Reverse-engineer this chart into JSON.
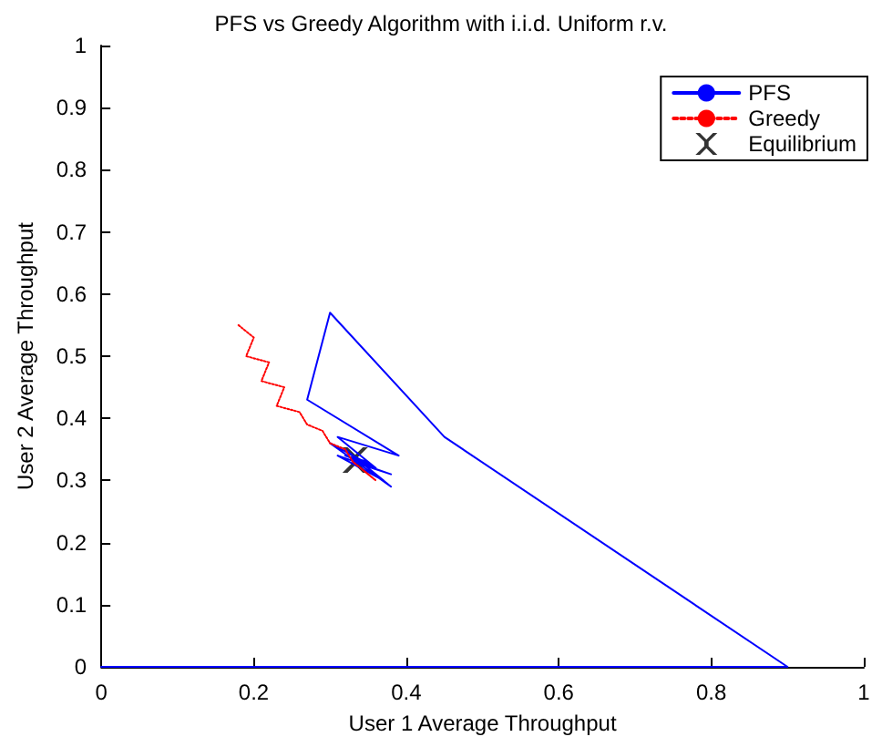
{
  "chart_data": {
    "type": "line",
    "title": "PFS vs Greedy Algorithm with i.i.d. Uniform r.v.",
    "xlabel": "User 1 Average Throughput",
    "ylabel": "User 2 Average Throughput",
    "series": [
      {
        "name": "PFS",
        "color": "#0000ff",
        "line_style": "solid",
        "marker": "none",
        "x": [
          0,
          0.9,
          0.45,
          0.3,
          0.27,
          0.39,
          0.31,
          0.36,
          0.3,
          0.38,
          0.32,
          0.37,
          0.31,
          0.38,
          0.33,
          0.36,
          0.32,
          0.35
        ],
        "values": [
          0,
          0,
          0.37,
          0.57,
          0.43,
          0.34,
          0.37,
          0.32,
          0.36,
          0.29,
          0.35,
          0.3,
          0.34,
          0.31,
          0.33,
          0.32,
          0.34,
          0.33
        ]
      },
      {
        "name": "Greedy",
        "color": "#ff0000",
        "line_style": "dotted",
        "marker": "none",
        "x": [
          0.18,
          0.2,
          0.19,
          0.22,
          0.21,
          0.24,
          0.23,
          0.26,
          0.27,
          0.29,
          0.3,
          0.32,
          0.33,
          0.35,
          0.36,
          0.34
        ],
        "values": [
          0.55,
          0.53,
          0.5,
          0.49,
          0.46,
          0.45,
          0.42,
          0.41,
          0.39,
          0.38,
          0.36,
          0.35,
          0.33,
          0.31,
          0.3,
          0.32
        ]
      },
      {
        "name": "Equilibrium",
        "type": "scatter",
        "color": "#000000",
        "marker": "cross",
        "x": [
          0.333
        ],
        "values": [
          0.333
        ]
      }
    ],
    "xlim": [
      0,
      1
    ],
    "xticks": [
      0,
      0.2,
      0.4,
      0.6,
      0.8,
      1
    ],
    "ylim": [
      0,
      1
    ],
    "yticks": [
      0,
      0.1,
      0.2,
      0.3,
      0.4,
      0.5,
      0.6,
      0.7,
      0.8,
      0.9,
      1
    ],
    "grid": false,
    "legend": "top right"
  }
}
